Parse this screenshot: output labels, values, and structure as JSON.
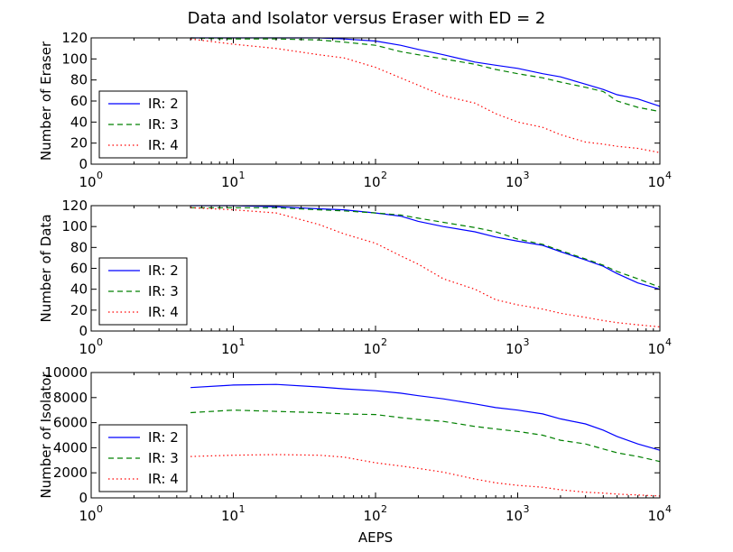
{
  "chart_data": {
    "title": "Data and Isolator versus Eraser with ED = 2",
    "type": "line",
    "xscale": "log",
    "xlabel": "AEPS",
    "xlim": [
      1,
      10000
    ],
    "xticks": [
      {
        "base": "10",
        "exp": "0"
      },
      {
        "base": "10",
        "exp": "1"
      },
      {
        "base": "10",
        "exp": "2"
      },
      {
        "base": "10",
        "exp": "3"
      },
      {
        "base": "10",
        "exp": "4"
      }
    ],
    "legend_position": "lower-left",
    "panels": [
      {
        "ylabel": "Number of Eraser",
        "ylim": [
          0,
          120
        ],
        "yticks": [
          "0",
          "20",
          "40",
          "60",
          "80",
          "100",
          "120"
        ],
        "series": [
          {
            "name": "IR: 2",
            "color": "#0000ff",
            "style": "solid",
            "x": [
              5,
              10,
              20,
              40,
              60,
              100,
              150,
              200,
              300,
              500,
              700,
              1000,
              1500,
              2000,
              3000,
              4000,
              5000,
              7000,
              10000
            ],
            "y": [
              120,
              120,
              120,
              120,
              119,
              117,
              113,
              109,
              104,
              97,
              94,
              91,
              86,
              83,
              76,
              71,
              66,
              62,
              55
            ]
          },
          {
            "name": "IR: 3",
            "color": "#008000",
            "style": "dashed",
            "x": [
              5,
              10,
              20,
              40,
              60,
              100,
              150,
              200,
              300,
              500,
              700,
              1000,
              1500,
              2000,
              3000,
              4000,
              5000,
              7000,
              10000
            ],
            "y": [
              120,
              119,
              119,
              118,
              116,
              113,
              107,
              104,
              100,
              95,
              90,
              86,
              82,
              78,
              73,
              69,
              60,
              54,
              50
            ]
          },
          {
            "name": "IR: 4",
            "color": "#ff0000",
            "style": "dotted",
            "x": [
              5,
              10,
              20,
              40,
              60,
              100,
              150,
              200,
              300,
              500,
              700,
              1000,
              1500,
              2000,
              3000,
              4000,
              5000,
              7000,
              10000
            ],
            "y": [
              119,
              114,
              110,
              104,
              101,
              92,
              82,
              75,
              65,
              58,
              48,
              40,
              35,
              28,
              21,
              19,
              17,
              15,
              11
            ]
          }
        ]
      },
      {
        "ylabel": "Number of Data",
        "ylim": [
          0,
          120
        ],
        "yticks": [
          "0",
          "20",
          "40",
          "60",
          "80",
          "100",
          "120"
        ],
        "series": [
          {
            "name": "IR: 2",
            "color": "#0000ff",
            "style": "solid",
            "x": [
              5,
              10,
              20,
              40,
              60,
              100,
              150,
              200,
              300,
              500,
              700,
              1000,
              1500,
              2000,
              3000,
              4000,
              5000,
              7000,
              10000
            ],
            "y": [
              120,
              120,
              119,
              117,
              116,
              113,
              110,
              105,
              100,
              95,
              90,
              86,
              82,
              76,
              68,
              62,
              55,
              46,
              40
            ]
          },
          {
            "name": "IR: 3",
            "color": "#008000",
            "style": "dashed",
            "x": [
              5,
              10,
              20,
              40,
              60,
              100,
              150,
              200,
              300,
              500,
              700,
              1000,
              1500,
              2000,
              3000,
              4000,
              5000,
              7000,
              10000
            ],
            "y": [
              118,
              118,
              118,
              116,
              115,
              113,
              111,
              108,
              104,
              99,
              95,
              88,
              83,
              77,
              69,
              63,
              57,
              50,
              42
            ]
          },
          {
            "name": "IR: 4",
            "color": "#ff0000",
            "style": "dotted",
            "x": [
              5,
              10,
              20,
              40,
              60,
              100,
              150,
              200,
              300,
              500,
              700,
              1000,
              1500,
              2000,
              3000,
              4000,
              5000,
              7000,
              10000
            ],
            "y": [
              118,
              116,
              113,
              102,
              93,
              84,
              72,
              64,
              50,
              40,
              30,
              25,
              21,
              17,
              13,
              10,
              8,
              6,
              4
            ]
          }
        ]
      },
      {
        "ylabel": "Number of Isolator",
        "ylim": [
          0,
          10000
        ],
        "yticks": [
          "0",
          "2000",
          "4000",
          "6000",
          "8000",
          "10000"
        ],
        "series": [
          {
            "name": "IR: 2",
            "color": "#0000ff",
            "style": "solid",
            "x": [
              5,
              10,
              20,
              40,
              60,
              100,
              150,
              200,
              300,
              500,
              700,
              1000,
              1500,
              2000,
              3000,
              4000,
              5000,
              7000,
              10000
            ],
            "y": [
              8800,
              9000,
              9050,
              8850,
              8700,
              8550,
              8350,
              8150,
              7900,
              7500,
              7200,
              7000,
              6700,
              6300,
              5900,
              5400,
              4900,
              4300,
              3800
            ]
          },
          {
            "name": "IR: 3",
            "color": "#008000",
            "style": "dashed",
            "x": [
              5,
              10,
              20,
              40,
              60,
              100,
              150,
              200,
              300,
              500,
              700,
              1000,
              1500,
              2000,
              3000,
              4000,
              5000,
              7000,
              10000
            ],
            "y": [
              6800,
              7000,
              6900,
              6800,
              6700,
              6650,
              6400,
              6250,
              6100,
              5700,
              5500,
              5300,
              5000,
              4600,
              4300,
              3900,
              3600,
              3300,
              2900
            ]
          },
          {
            "name": "IR: 4",
            "color": "#ff0000",
            "style": "dotted",
            "x": [
              5,
              10,
              20,
              40,
              60,
              100,
              150,
              200,
              300,
              500,
              700,
              1000,
              1500,
              2000,
              3000,
              4000,
              5000,
              7000,
              10000
            ],
            "y": [
              3300,
              3400,
              3450,
              3400,
              3250,
              2800,
              2550,
              2350,
              2050,
              1500,
              1200,
              1000,
              850,
              650,
              450,
              380,
              300,
              230,
              150
            ]
          }
        ]
      }
    ]
  }
}
